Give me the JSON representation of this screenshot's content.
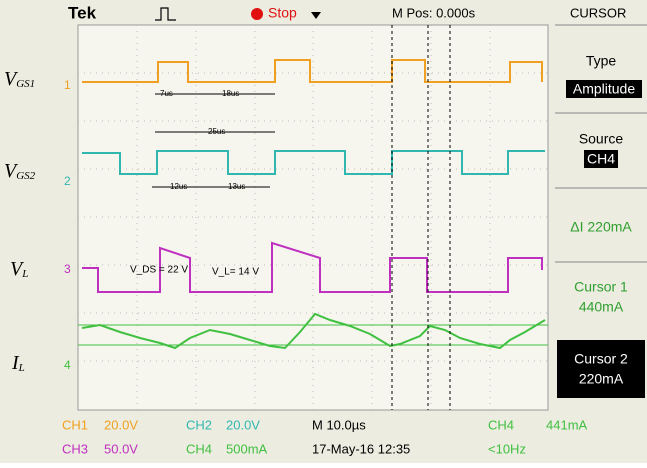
{
  "header": {
    "brand": "Tek",
    "state": "Stop",
    "position": "M Pos: 0.000s",
    "menu": "CURSOR"
  },
  "signals": [
    {
      "main": "V",
      "sub": "GS1",
      "marker": "1"
    },
    {
      "main": "V",
      "sub": "GS2",
      "marker": "2"
    },
    {
      "main": "V",
      "sub": "L",
      "marker": "3"
    },
    {
      "main": "I",
      "sub": "L",
      "marker": "4"
    }
  ],
  "annotations": {
    "t1": "7us",
    "t2": "18us",
    "t3": "25us",
    "t4": "12us",
    "t5": "13us",
    "vds": "V_DS = 22 V",
    "vl": "V_L= 14 V"
  },
  "menu": {
    "type_label": "Type",
    "type_value": "Amplitude",
    "source_label": "Source",
    "source_value": "CH4",
    "delta": "ΔI 220mA",
    "cursor1_label": "Cursor 1",
    "cursor1_value": "440mA",
    "cursor2_label": "Cursor 2",
    "cursor2_value": "220mA"
  },
  "footer": {
    "ch1": "CH1",
    "ch1_scale": "20.0V",
    "ch2": "CH2",
    "ch2_scale": "20.0V",
    "timebase": "M 10.0µs",
    "trig_ch": "CH4",
    "trig_level": "441mA",
    "ch3": "CH3",
    "ch3_scale": "50.0V",
    "ch4": "CH4",
    "ch4_scale": "500mA",
    "date": "17-May-16 12:35",
    "freq": "<10Hz"
  }
}
